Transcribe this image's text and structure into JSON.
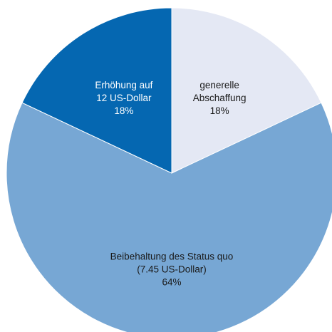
{
  "chart_data": {
    "type": "pie",
    "title": "",
    "slices": [
      {
        "label_lines": [
          "generelle",
          "Abschaffung",
          "18%"
        ],
        "value": 18,
        "color": "#E4E8F4",
        "label_color": "#1A1A1A"
      },
      {
        "label_lines": [
          "Beibehaltung des Status quo",
          "(7.45 US-Dollar)",
          "64%"
        ],
        "value": 64,
        "color": "#77A7D4",
        "label_color": "#1A1A1A"
      },
      {
        "label_lines": [
          "Erhöhung auf",
          "12 US-Dollar",
          "18%"
        ],
        "value": 18,
        "color": "#0567B1",
        "label_color": "#FFFFFF"
      }
    ],
    "start_angle_deg": 0,
    "direction": "clockwise",
    "legend": "none"
  }
}
